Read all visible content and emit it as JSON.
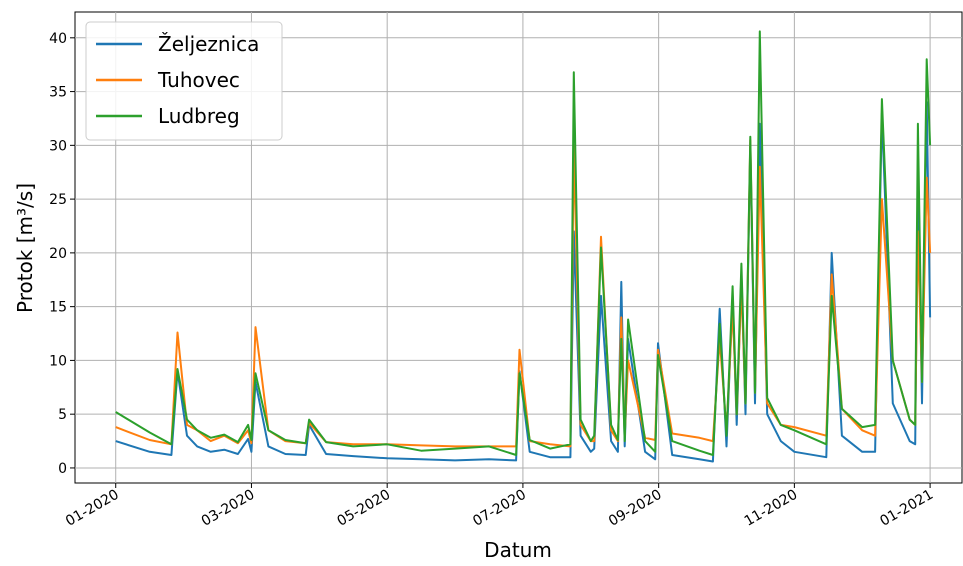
{
  "chart_data": {
    "type": "line",
    "xlabel": "Datum",
    "ylabel": "Protok [m³/s]",
    "xlim": [
      -0.6,
      12.47
    ],
    "ylim": [
      -1.4,
      42.4
    ],
    "xticks": [
      {
        "value": 0,
        "label": "01-2020"
      },
      {
        "value": 2,
        "label": "03-2020"
      },
      {
        "value": 4,
        "label": "05-2020"
      },
      {
        "value": 6,
        "label": "07-2020"
      },
      {
        "value": 8,
        "label": "09-2020"
      },
      {
        "value": 10,
        "label": "11-2020"
      },
      {
        "value": 12,
        "label": "01-2021"
      }
    ],
    "yticks": [
      0,
      5,
      10,
      15,
      20,
      25,
      30,
      35,
      40
    ],
    "grid": true,
    "legend": "upper left",
    "x": [
      0,
      0.5,
      0.82,
      0.91,
      1.05,
      1.2,
      1.4,
      1.6,
      1.8,
      1.95,
      2.0,
      2.06,
      2.25,
      2.5,
      2.8,
      2.85,
      3.1,
      3.5,
      4.0,
      4.5,
      5.0,
      5.5,
      5.9,
      5.95,
      6.1,
      6.4,
      6.7,
      6.75,
      6.85,
      7.0,
      7.05,
      7.15,
      7.3,
      7.4,
      7.45,
      7.5,
      7.55,
      7.8,
      7.95,
      7.99,
      8.2,
      8.6,
      8.8,
      8.9,
      9.0,
      9.09,
      9.15,
      9.22,
      9.28,
      9.35,
      9.42,
      9.49,
      9.6,
      9.8,
      10.0,
      10.47,
      10.55,
      10.7,
      11.0,
      11.19,
      11.29,
      11.45,
      11.7,
      11.78,
      11.82,
      11.88,
      11.95,
      12.0
    ],
    "series": [
      {
        "name": "Željeznica",
        "color": "#1f77b4",
        "values": [
          2.5,
          1.5,
          1.2,
          9,
          3,
          2,
          1.5,
          1.7,
          1.3,
          2.7,
          1.5,
          8,
          2,
          1.3,
          1.2,
          4,
          1.3,
          1.1,
          0.9,
          0.8,
          0.7,
          0.8,
          0.7,
          9,
          1.5,
          1,
          1,
          22,
          3,
          1.5,
          1.8,
          16,
          2.5,
          1.5,
          17.3,
          2,
          12,
          1.5,
          0.8,
          11.6,
          1.2,
          0.8,
          0.6,
          14.8,
          2,
          16,
          4,
          18,
          5,
          30,
          6,
          32,
          5,
          2.5,
          1.5,
          1,
          20,
          3,
          1.5,
          1.5,
          33,
          6,
          2.5,
          2.2,
          27,
          6,
          34,
          14
        ]
      },
      {
        "name": "Tuhovec",
        "color": "#ff7f0e",
        "values": [
          3.8,
          2.6,
          2.2,
          12.6,
          4,
          3.5,
          2.5,
          3,
          2.3,
          3.5,
          2.3,
          13.1,
          3.5,
          2.5,
          2.3,
          4.2,
          2.4,
          2.2,
          2.2,
          2.1,
          2,
          2,
          2,
          11,
          2.5,
          2.2,
          2,
          30,
          4,
          2.5,
          2.5,
          21.5,
          3.5,
          2.5,
          14,
          3,
          10,
          2.8,
          2.6,
          11,
          3.2,
          2.8,
          2.5,
          12,
          3.5,
          15,
          5,
          17,
          6,
          30.5,
          7,
          28,
          6,
          4,
          3.8,
          3,
          18,
          5.5,
          3.5,
          3,
          25,
          10,
          4.5,
          4,
          22,
          8,
          27,
          20
        ]
      },
      {
        "name": "Ludbreg",
        "color": "#2ca02c",
        "values": [
          5.2,
          3.3,
          2.2,
          9.2,
          4.5,
          3.5,
          2.8,
          3.1,
          2.4,
          4,
          2.6,
          8.8,
          3.5,
          2.6,
          2.3,
          4.5,
          2.4,
          2,
          2.2,
          1.6,
          1.8,
          2,
          1.2,
          8.8,
          2.6,
          1.8,
          2.2,
          36.8,
          4.5,
          2.5,
          3,
          20.5,
          4,
          2.6,
          12,
          2.5,
          13.8,
          2.5,
          1.5,
          10.5,
          2.5,
          1.6,
          1.2,
          13.4,
          3,
          16.9,
          5,
          19,
          6,
          30.8,
          7,
          40.6,
          6.5,
          4,
          3.5,
          2.2,
          16,
          5.5,
          3.8,
          4,
          34.3,
          10,
          4.5,
          4,
          32,
          8,
          38,
          30
        ]
      }
    ]
  }
}
